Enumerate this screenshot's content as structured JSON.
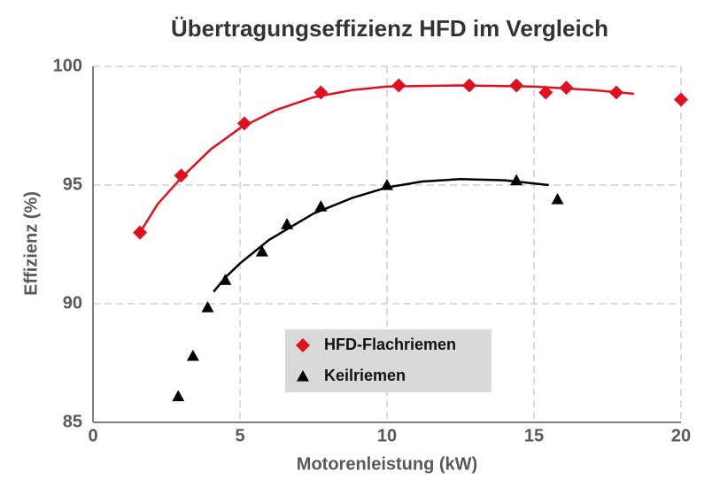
{
  "chart_data": {
    "type": "scatter",
    "title": "Übertragungseffizienz HFD im Vergleich",
    "x_label": "Motorenleistung (kW)",
    "y_label": "Effizienz (%)",
    "xlim": [
      0,
      20
    ],
    "xticks": [
      0,
      5,
      10,
      15,
      20
    ],
    "ylim": [
      85,
      100
    ],
    "yticks": [
      85,
      90,
      95,
      100
    ],
    "grid": true,
    "legend": "bottom-center",
    "series": [
      {
        "name": "HFD-Flachriemen",
        "color": "#e0101e",
        "marker": "diamond",
        "x": [
          1.6,
          3.0,
          5.15,
          7.75,
          10.4,
          12.8,
          14.4,
          15.4,
          16.1,
          17.8,
          20.0
        ],
        "values": [
          93.0,
          95.4,
          97.6,
          98.9,
          99.2,
          99.2,
          99.2,
          98.9,
          99.1,
          98.9,
          98.6
        ]
      },
      {
        "name": "Keilriemen",
        "color": "#000000",
        "marker": "triangle",
        "x": [
          2.9,
          3.4,
          3.9,
          4.5,
          5.75,
          6.6,
          7.75,
          10.0,
          14.4,
          15.8
        ],
        "values": [
          86.1,
          87.8,
          89.85,
          91.0,
          92.2,
          93.35,
          94.1,
          95.0,
          95.2,
          94.4
        ]
      }
    ],
    "trendlines": [
      {
        "color": "#e0101e",
        "x": [
          1.6,
          2.2,
          3.0,
          4.0,
          5.0,
          6.2,
          7.5,
          8.8,
          10.0,
          12.5,
          15.0,
          17.0,
          18.4
        ],
        "values": [
          93.0,
          94.2,
          95.3,
          96.5,
          97.4,
          98.15,
          98.7,
          99.0,
          99.15,
          99.2,
          99.15,
          99.0,
          98.85
        ]
      },
      {
        "color": "#000000",
        "x": [
          4.1,
          4.5,
          5.0,
          6.0,
          7.5,
          8.8,
          10.0,
          11.2,
          12.5,
          14.0,
          15.5
        ],
        "values": [
          90.5,
          91.1,
          91.7,
          92.7,
          93.8,
          94.45,
          94.9,
          95.15,
          95.25,
          95.2,
          95.0
        ]
      }
    ]
  }
}
